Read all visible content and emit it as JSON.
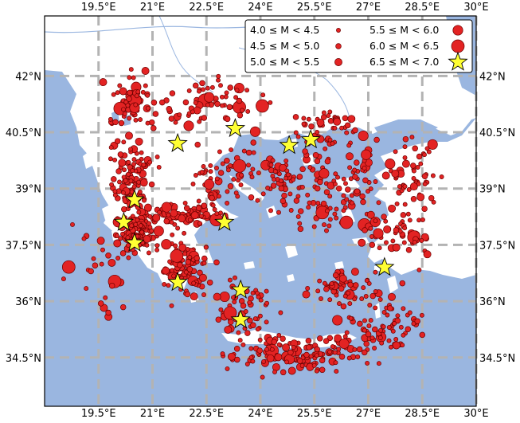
{
  "colors": {
    "ocean": "#9ab6e0",
    "land": "#ffffff",
    "grid": "#b3b3b3",
    "quake": "#e32323",
    "quake_edge": "#6b0000",
    "star": "#ffff33"
  },
  "chart_data": {
    "type": "scatter",
    "title": "",
    "x_axis": {
      "unit": "longitude (°E)",
      "range": [
        18.0,
        30.0
      ],
      "ticks": [
        19.5,
        21,
        22.5,
        24,
        25.5,
        27,
        28.5,
        30
      ],
      "tick_labels": [
        "19.5°E",
        "21°E",
        "22.5°E",
        "24°E",
        "25.5°E",
        "27°E",
        "28.5°E",
        "30°E"
      ]
    },
    "y_axis": {
      "unit": "latitude (°N)",
      "range": [
        33.2,
        43.6
      ],
      "ticks": [
        34.5,
        36,
        37.5,
        39,
        40.5,
        42
      ],
      "tick_labels": [
        "34.5°N",
        "36°N",
        "37.5°N",
        "39°N",
        "40.5°N",
        "42°N"
      ]
    },
    "grid": true,
    "legend": {
      "placement": "top-right",
      "entries": [
        {
          "label": "4.0 ≤ M < 4.5",
          "class": "m4.0"
        },
        {
          "label": "4.5 ≤ M < 5.0",
          "class": "m4.5"
        },
        {
          "label": "5.0 ≤ M < 5.5",
          "class": "m5.0"
        },
        {
          "label": "5.5 ≤ M < 6.0",
          "class": "m5.5"
        },
        {
          "label": "6.0 ≤ M < 6.5",
          "class": "m6.0"
        },
        {
          "label": "6.5 ≤ M < 7.0",
          "class": "m6.5"
        }
      ]
    },
    "major_events": [
      {
        "lon": 21.7,
        "lat": 40.2
      },
      {
        "lon": 23.3,
        "lat": 40.6
      },
      {
        "lon": 24.8,
        "lat": 40.15
      },
      {
        "lon": 25.4,
        "lat": 40.3
      },
      {
        "lon": 20.5,
        "lat": 38.7
      },
      {
        "lon": 20.2,
        "lat": 38.1
      },
      {
        "lon": 20.5,
        "lat": 37.55
      },
      {
        "lon": 23.0,
        "lat": 38.1
      },
      {
        "lon": 21.7,
        "lat": 36.5
      },
      {
        "lon": 23.45,
        "lat": 36.3
      },
      {
        "lon": 23.45,
        "lat": 35.5
      },
      {
        "lon": 27.45,
        "lat": 36.9
      }
    ],
    "event_clusters": [
      {
        "lon": 20.4,
        "lat": 39.3,
        "spread_lon": 0.45,
        "spread_lat": 0.9,
        "count": 110
      },
      {
        "lon": 20.6,
        "lat": 37.8,
        "spread_lon": 0.5,
        "spread_lat": 0.5,
        "count": 120
      },
      {
        "lon": 22.0,
        "lat": 38.3,
        "spread_lon": 0.8,
        "spread_lat": 0.25,
        "count": 80
      },
      {
        "lon": 21.9,
        "lat": 36.7,
        "spread_lon": 0.5,
        "spread_lat": 0.5,
        "count": 70
      },
      {
        "lon": 23.0,
        "lat": 39.2,
        "spread_lon": 0.8,
        "spread_lat": 0.7,
        "count": 60
      },
      {
        "lon": 24.5,
        "lat": 39.3,
        "spread_lon": 0.9,
        "spread_lat": 0.6,
        "count": 55
      },
      {
        "lon": 25.6,
        "lat": 38.5,
        "spread_lon": 0.9,
        "spread_lat": 0.6,
        "count": 45
      },
      {
        "lon": 26.4,
        "lat": 39.5,
        "spread_lon": 0.8,
        "spread_lat": 0.8,
        "count": 60
      },
      {
        "lon": 28.2,
        "lat": 39.3,
        "spread_lon": 0.6,
        "spread_lat": 0.8,
        "count": 55
      },
      {
        "lon": 27.8,
        "lat": 37.8,
        "spread_lon": 0.9,
        "spread_lat": 0.6,
        "count": 55
      },
      {
        "lon": 26.5,
        "lat": 36.4,
        "spread_lon": 1.0,
        "spread_lat": 0.4,
        "count": 60
      },
      {
        "lon": 25.0,
        "lat": 34.6,
        "spread_lon": 1.6,
        "spread_lat": 0.4,
        "count": 140
      },
      {
        "lon": 27.5,
        "lat": 35.3,
        "spread_lon": 0.9,
        "spread_lat": 0.5,
        "count": 70
      },
      {
        "lon": 23.6,
        "lat": 35.8,
        "spread_lon": 0.6,
        "spread_lat": 0.6,
        "count": 55
      },
      {
        "lon": 22.6,
        "lat": 41.3,
        "spread_lon": 1.4,
        "spread_lat": 0.5,
        "count": 70
      },
      {
        "lon": 20.5,
        "lat": 41.3,
        "spread_lon": 0.6,
        "spread_lat": 0.6,
        "count": 60
      },
      {
        "lon": 25.8,
        "lat": 40.6,
        "spread_lon": 0.8,
        "spread_lat": 0.35,
        "count": 45
      },
      {
        "lon": 22.0,
        "lat": 37.3,
        "spread_lon": 0.5,
        "spread_lat": 0.4,
        "count": 30
      },
      {
        "lon": 19.5,
        "lat": 36.8,
        "spread_lon": 0.8,
        "spread_lat": 1.2,
        "count": 25
      }
    ]
  }
}
